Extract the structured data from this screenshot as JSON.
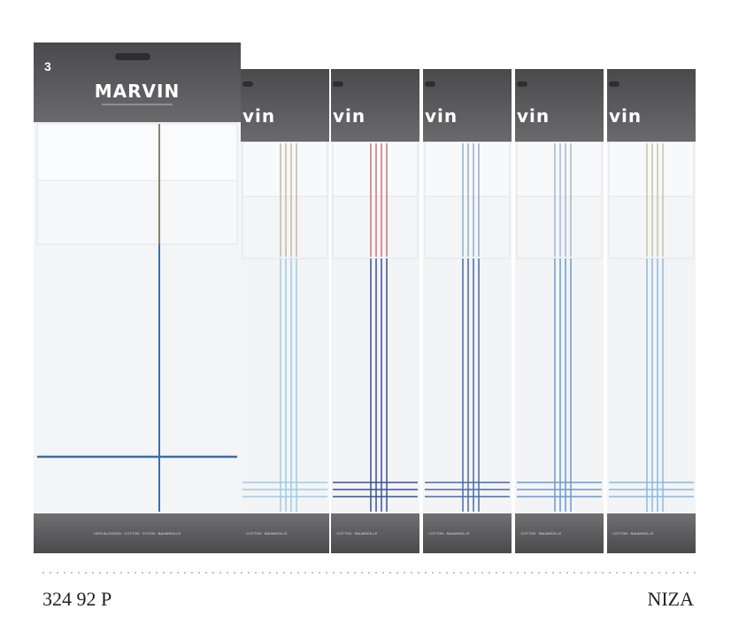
{
  "brand": {
    "count": "3",
    "logo": "MARVIN",
    "fiber": "100% ALGODÓN · COTTON · COTON · BAUMWOLLE"
  },
  "variants": [
    {
      "logo": "vin",
      "fiber": "· COTTON · BAUMWOLLE"
    },
    {
      "logo": "vin",
      "fiber": "· COTTON · BAUMWOLLE"
    },
    {
      "logo": "vin",
      "fiber": "· COTTON · BAUMWOLLE"
    },
    {
      "logo": "vin",
      "fiber": "· COTTON · BAUMWOLLE"
    },
    {
      "logo": "vin",
      "fiber": "· COTTON · BAUMWOLLE"
    }
  ],
  "caption": {
    "code": "324 92 P",
    "name": "NIZA"
  }
}
